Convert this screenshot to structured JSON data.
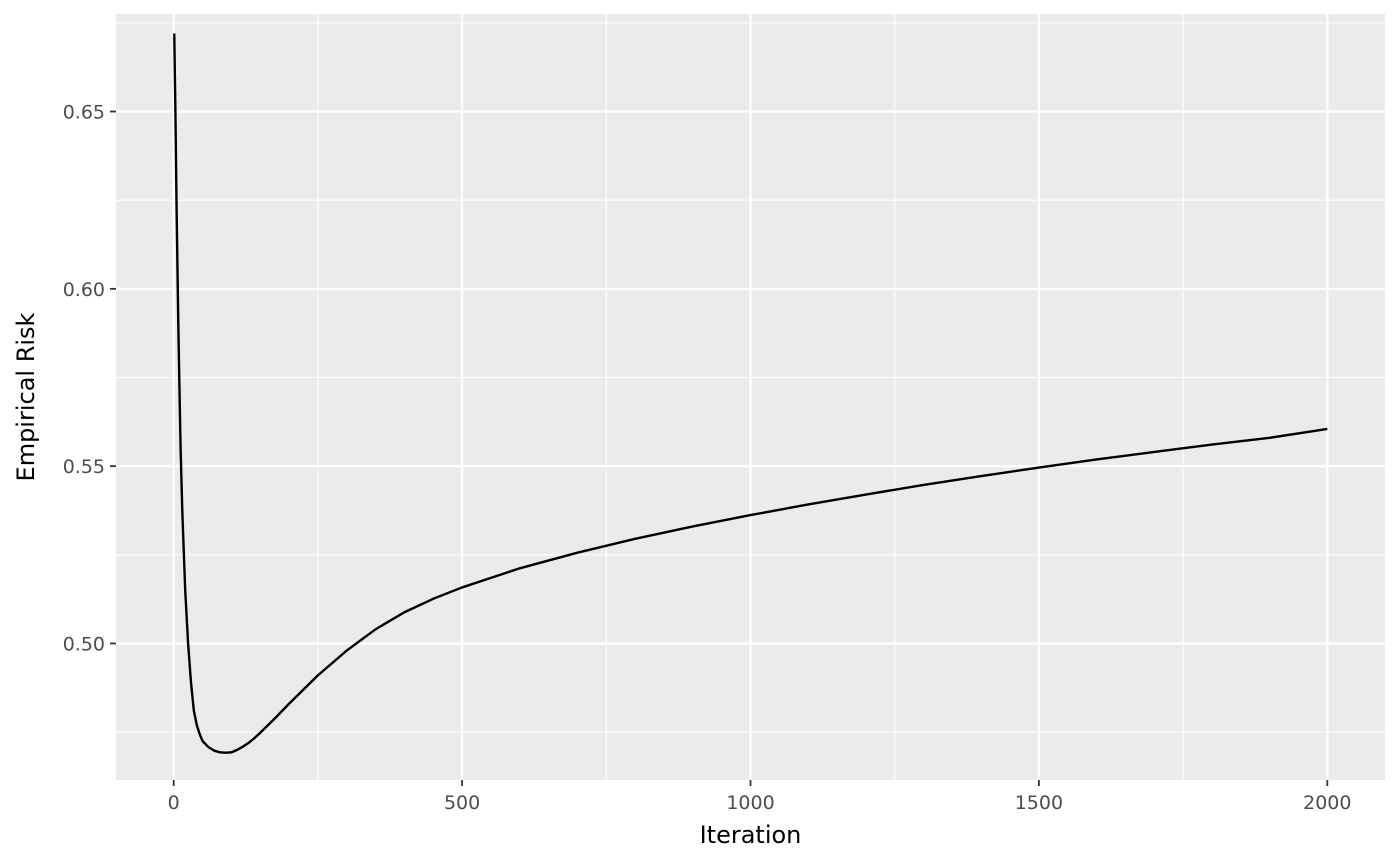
{
  "chart_data": {
    "type": "line",
    "title": "",
    "xlabel": "Iteration",
    "ylabel": "Empirical Risk",
    "xlim": [
      -100,
      2100
    ],
    "ylim": [
      0.4615,
      0.6775
    ],
    "x_ticks": [
      0,
      500,
      1000,
      1500,
      2000
    ],
    "x_tick_labels": [
      "0",
      "500",
      "1000",
      "1500",
      "2000"
    ],
    "x_minor_ticks": [
      250,
      750,
      1250,
      1750
    ],
    "y_ticks": [
      0.5,
      0.55,
      0.6,
      0.65
    ],
    "y_tick_labels": [
      "0.50",
      "0.55",
      "0.60",
      "0.65"
    ],
    "y_minor_ticks": [
      0.475,
      0.525,
      0.575,
      0.625,
      0.675
    ],
    "grid": true,
    "panel_background": "#ebebeb",
    "grid_color": "#ffffff",
    "line_color": "#000000",
    "series": [
      {
        "name": "Empirical Risk",
        "x": [
          1,
          3,
          5,
          8,
          10,
          12,
          15,
          20,
          25,
          30,
          35,
          40,
          45,
          50,
          60,
          70,
          80,
          90,
          100,
          110,
          120,
          130,
          140,
          150,
          175,
          200,
          250,
          300,
          350,
          400,
          450,
          500,
          600,
          700,
          800,
          900,
          1000,
          1100,
          1200,
          1300,
          1400,
          1500,
          1600,
          1700,
          1800,
          1900,
          2000
        ],
        "values": [
          0.672,
          0.65,
          0.623,
          0.59,
          0.572,
          0.555,
          0.537,
          0.515,
          0.5,
          0.489,
          0.481,
          0.477,
          0.4745,
          0.4725,
          0.4708,
          0.4698,
          0.4693,
          0.4692,
          0.4693,
          0.47,
          0.4709,
          0.472,
          0.4733,
          0.4748,
          0.4788,
          0.483,
          0.491,
          0.498,
          0.504,
          0.5088,
          0.5126,
          0.5158,
          0.5212,
          0.5256,
          0.5295,
          0.533,
          0.5362,
          0.5392,
          0.542,
          0.5447,
          0.5472,
          0.5496,
          0.5519,
          0.554,
          0.5561,
          0.558,
          0.5605
        ]
      }
    ]
  }
}
